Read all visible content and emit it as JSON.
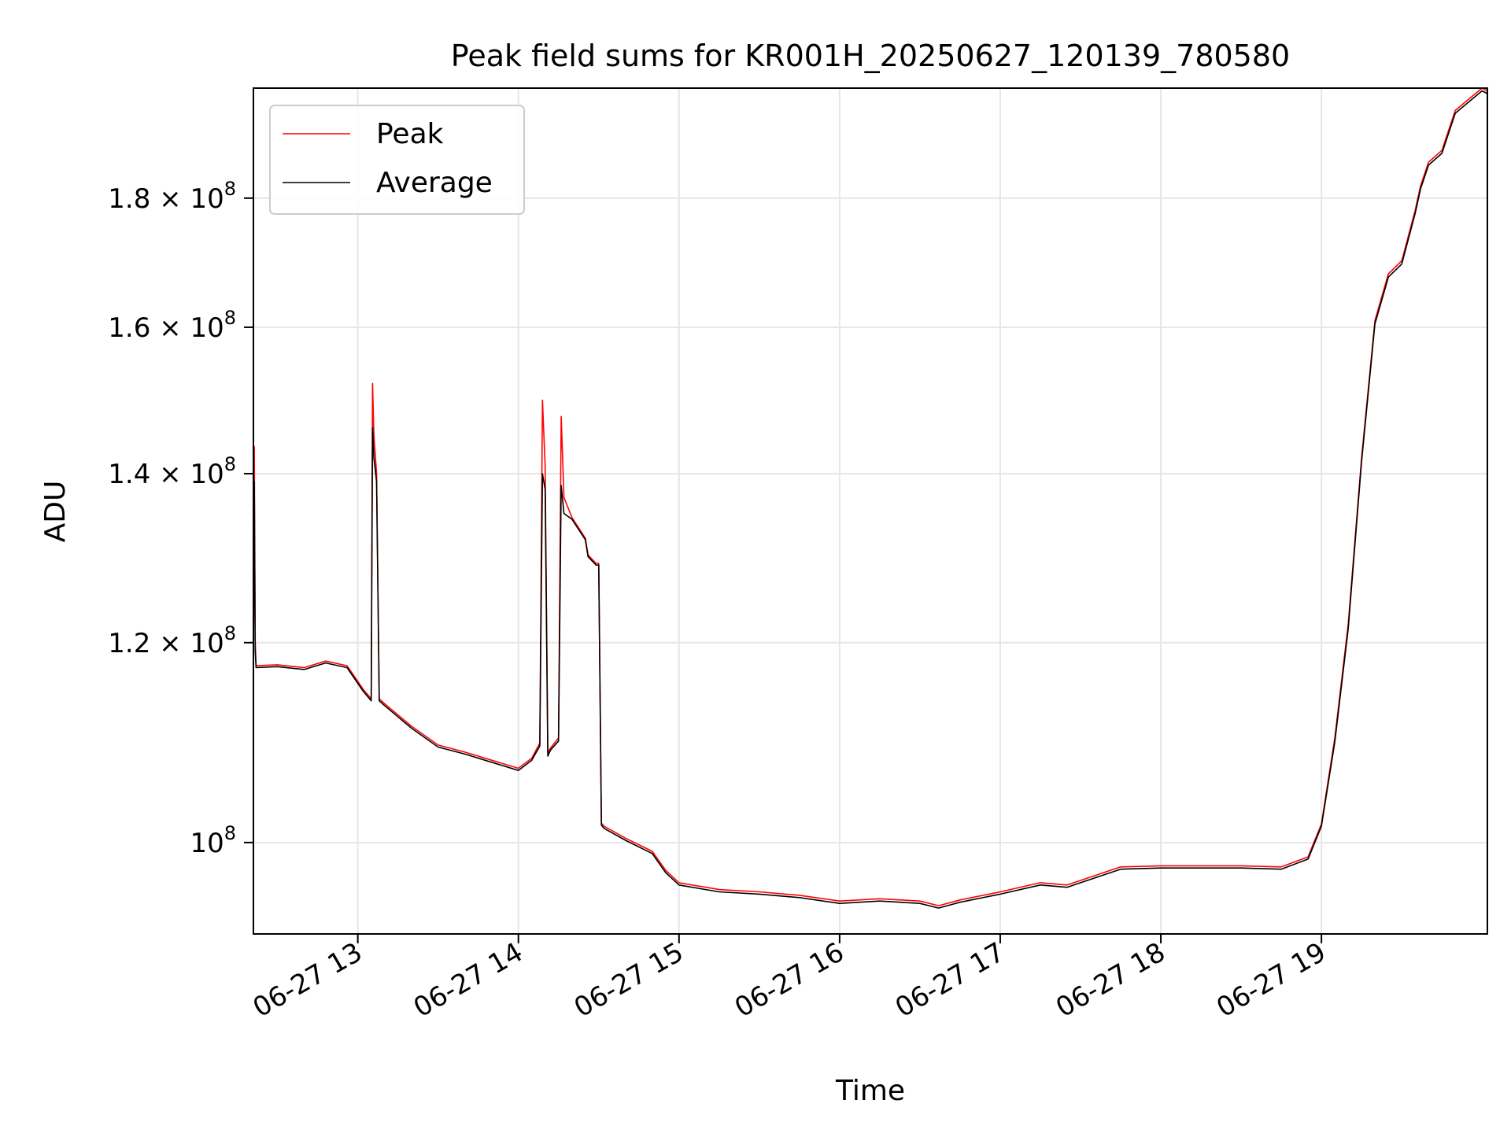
{
  "chart_data": {
    "type": "line",
    "title": "Peak field sums for KR001H_20250627_120139_780580",
    "xlabel": "Time",
    "ylabel": "ADU",
    "yscale": "log",
    "ylim": [
      92000000,
      199000000
    ],
    "xlim": [
      "06-27 12:21",
      "06-27 20:02"
    ],
    "grid": true,
    "legend_position": "upper-left",
    "x_ticks": [
      "06-27 13",
      "06-27 14",
      "06-27 15",
      "06-27 16",
      "06-27 17",
      "06-27 18",
      "06-27 19"
    ],
    "y_ticks": [
      {
        "value": 100000000,
        "mantissa": "",
        "exponent": "8"
      },
      {
        "value": 120000000,
        "mantissa": "1.2",
        "exponent": "8"
      },
      {
        "value": 140000000,
        "mantissa": "1.4",
        "exponent": "8"
      },
      {
        "value": 160000000,
        "mantissa": "1.6",
        "exponent": "8"
      },
      {
        "value": 180000000,
        "mantissa": "1.8",
        "exponent": "8"
      }
    ],
    "series": [
      {
        "name": "Peak",
        "color": "#ff0000",
        "x": [
          "06-27 12:21",
          "06-27 12:21:20",
          "06-27 12:21:40",
          "06-27 12:22",
          "06-27 12:30",
          "06-27 12:40",
          "06-27 12:48",
          "06-27 12:56",
          "06-27 13:02",
          "06-27 13:05",
          "06-27 13:05:30",
          "06-27 13:06",
          "06-27 13:07",
          "06-27 13:08",
          "06-27 13:10",
          "06-27 13:20",
          "06-27 13:30",
          "06-27 13:40",
          "06-27 13:50",
          "06-27 14:00",
          "06-27 14:05",
          "06-27 14:08",
          "06-27 14:09",
          "06-27 14:10",
          "06-27 14:11",
          "06-27 14:12",
          "06-27 14:15",
          "06-27 14:16",
          "06-27 14:17",
          "06-27 14:20",
          "06-27 14:25",
          "06-27 14:26",
          "06-27 14:29",
          "06-27 14:30",
          "06-27 14:31",
          "06-27 14:32",
          "06-27 14:40",
          "06-27 14:50",
          "06-27 14:55",
          "06-27 15:00",
          "06-27 15:15",
          "06-27 15:30",
          "06-27 15:45",
          "06-27 16:00",
          "06-27 16:15",
          "06-27 16:30",
          "06-27 16:37",
          "06-27 16:45",
          "06-27 17:00",
          "06-27 17:15",
          "06-27 17:25",
          "06-27 17:30",
          "06-27 17:45",
          "06-27 18:00",
          "06-27 18:15",
          "06-27 18:30",
          "06-27 18:45",
          "06-27 18:55",
          "06-27 19:00",
          "06-27 19:05",
          "06-27 19:10",
          "06-27 19:15",
          "06-27 19:20",
          "06-27 19:25",
          "06-27 19:30",
          "06-27 19:35",
          "06-27 19:37",
          "06-27 19:40",
          "06-27 19:45",
          "06-27 19:50",
          "06-27 20:00",
          "06-27 20:02"
        ],
        "values": [
          118000000,
          143500000,
          120000000,
          117500000,
          117600000,
          117300000,
          118000000,
          117500000,
          115000000,
          114000000,
          152000000,
          145000000,
          140000000,
          114000000,
          113500000,
          111200000,
          109300000,
          108600000,
          107800000,
          107000000,
          108000000,
          109500000,
          149700000,
          141000000,
          108500000,
          109000000,
          110000000,
          147500000,
          137000000,
          134500000,
          132000000,
          130000000,
          129000000,
          129000000,
          101800000,
          101500000,
          100400000,
          99200000,
          97500000,
          96400000,
          95800000,
          95600000,
          95300000,
          94800000,
          95000000,
          94800000,
          94400000,
          94900000,
          95600000,
          96400000,
          96200000,
          96600000,
          97800000,
          97900000,
          97900000,
          97900000,
          97800000,
          98700000,
          101700000,
          110000000,
          122000000,
          142000000,
          161000000,
          168000000,
          170000000,
          178000000,
          182000000,
          186000000,
          188000000,
          195000000,
          199000000,
          198500000
        ]
      },
      {
        "name": "Average",
        "color": "#000000",
        "x": [
          "06-27 12:21",
          "06-27 12:21:20",
          "06-27 12:21:40",
          "06-27 12:22",
          "06-27 12:30",
          "06-27 12:40",
          "06-27 12:48",
          "06-27 12:56",
          "06-27 13:02",
          "06-27 13:05",
          "06-27 13:05:30",
          "06-27 13:06",
          "06-27 13:07",
          "06-27 13:08",
          "06-27 13:10",
          "06-27 13:20",
          "06-27 13:30",
          "06-27 13:40",
          "06-27 13:50",
          "06-27 14:00",
          "06-27 14:05",
          "06-27 14:08",
          "06-27 14:09",
          "06-27 14:10",
          "06-27 14:11",
          "06-27 14:12",
          "06-27 14:15",
          "06-27 14:16",
          "06-27 14:17",
          "06-27 14:20",
          "06-27 14:25",
          "06-27 14:26",
          "06-27 14:29",
          "06-27 14:30",
          "06-27 14:31",
          "06-27 14:32",
          "06-27 14:40",
          "06-27 14:50",
          "06-27 14:55",
          "06-27 15:00",
          "06-27 15:15",
          "06-27 15:30",
          "06-27 15:45",
          "06-27 16:00",
          "06-27 16:15",
          "06-27 16:30",
          "06-27 16:37",
          "06-27 16:45",
          "06-27 17:00",
          "06-27 17:15",
          "06-27 17:25",
          "06-27 17:30",
          "06-27 17:45",
          "06-27 18:00",
          "06-27 18:15",
          "06-27 18:30",
          "06-27 18:45",
          "06-27 18:55",
          "06-27 19:00",
          "06-27 19:05",
          "06-27 19:10",
          "06-27 19:15",
          "06-27 19:20",
          "06-27 19:25",
          "06-27 19:30",
          "06-27 19:35",
          "06-27 19:37",
          "06-27 19:40",
          "06-27 19:45",
          "06-27 19:50",
          "06-27 20:00",
          "06-27 20:02"
        ],
        "values": [
          117800000,
          139000000,
          119000000,
          117300000,
          117400000,
          117100000,
          117800000,
          117300000,
          114800000,
          113800000,
          146000000,
          142000000,
          139000000,
          113800000,
          113300000,
          111000000,
          109100000,
          108400000,
          107600000,
          106800000,
          107800000,
          109200000,
          140000000,
          138000000,
          108200000,
          108800000,
          109700000,
          138500000,
          135000000,
          134300000,
          131800000,
          129800000,
          128800000,
          128800000,
          101600000,
          101300000,
          100200000,
          99000000,
          97300000,
          96200000,
          95600000,
          95400000,
          95100000,
          94600000,
          94800000,
          94600000,
          94200000,
          94700000,
          95400000,
          96200000,
          96000000,
          96400000,
          97600000,
          97700000,
          97700000,
          97700000,
          97600000,
          98500000,
          101500000,
          109600000,
          121500000,
          141500000,
          160500000,
          167500000,
          169500000,
          177500000,
          181500000,
          185500000,
          187500000,
          194500000,
          198500000,
          198000000
        ]
      }
    ]
  }
}
